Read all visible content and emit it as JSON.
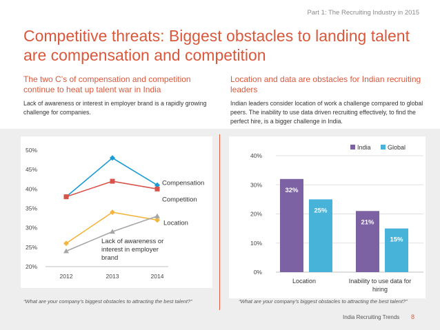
{
  "header": {
    "part_label": "Part 1: The Recruiting Industry in 2015",
    "title": "Competitive threats: Biggest obstacles to landing talent are compensation and competition"
  },
  "left_section": {
    "subhead": "The two C’s of compensation and competition continue to heat up talent war in India",
    "body": "Lack of awareness or interest in employer brand is a rapidly growing challenge for companies.",
    "footnote": "“What are your company’s biggest obstacles to attracting the best talent?”"
  },
  "right_section": {
    "subhead": "Location and data are obstacles for Indian recruiting leaders",
    "body": "Indian leaders consider location of work a challenge compared to global peers. The inability to use data driven recruiting effectively, to find the perfect hire, is a bigger challenge in India.",
    "footnote": "“What are your company’s biggest obstacles to attracting the best talent?”"
  },
  "footer": {
    "brand": "India Recruiting Trends",
    "page_number": "8"
  },
  "chart_data": [
    {
      "type": "line",
      "x": [
        "2012",
        "2013",
        "2014"
      ],
      "ylim": [
        20,
        50
      ],
      "yticks": [
        "20%",
        "25%",
        "30%",
        "35%",
        "40%",
        "45%",
        "50%"
      ],
      "series": [
        {
          "name": "Compensation",
          "values": [
            38,
            48,
            41
          ],
          "color": "#1b9bd1",
          "marker": "diamond"
        },
        {
          "name": "Competition",
          "values": [
            38,
            42,
            40
          ],
          "color": "#d9534a",
          "marker": "square"
        },
        {
          "name": "Location",
          "values": [
            26,
            34,
            32
          ],
          "color": "#f2b640",
          "marker": "diamond"
        },
        {
          "name": "Lack of awareness or interest in employer brand",
          "label_lines": [
            "Lack of awareness or",
            "interest in employer",
            "brand"
          ],
          "values": [
            24,
            29,
            33
          ],
          "color": "#a6a6a6",
          "marker": "triangle"
        }
      ]
    },
    {
      "type": "bar",
      "categories": [
        "Location",
        "Inability to use data for hiring"
      ],
      "category_lines": [
        [
          "Location"
        ],
        [
          "Inability to use data for",
          "hiring"
        ]
      ],
      "ylim": [
        0,
        40
      ],
      "yticks": [
        "0%",
        "10%",
        "20%",
        "30%",
        "40%"
      ],
      "legend_position": "top",
      "series": [
        {
          "name": "India",
          "values": [
            32,
            21
          ],
          "labels": [
            "32%",
            "21%"
          ],
          "color": "#7d62a3"
        },
        {
          "name": "Global",
          "values": [
            25,
            15
          ],
          "labels": [
            "25%",
            "15%"
          ],
          "color": "#47b3d9"
        }
      ]
    }
  ]
}
